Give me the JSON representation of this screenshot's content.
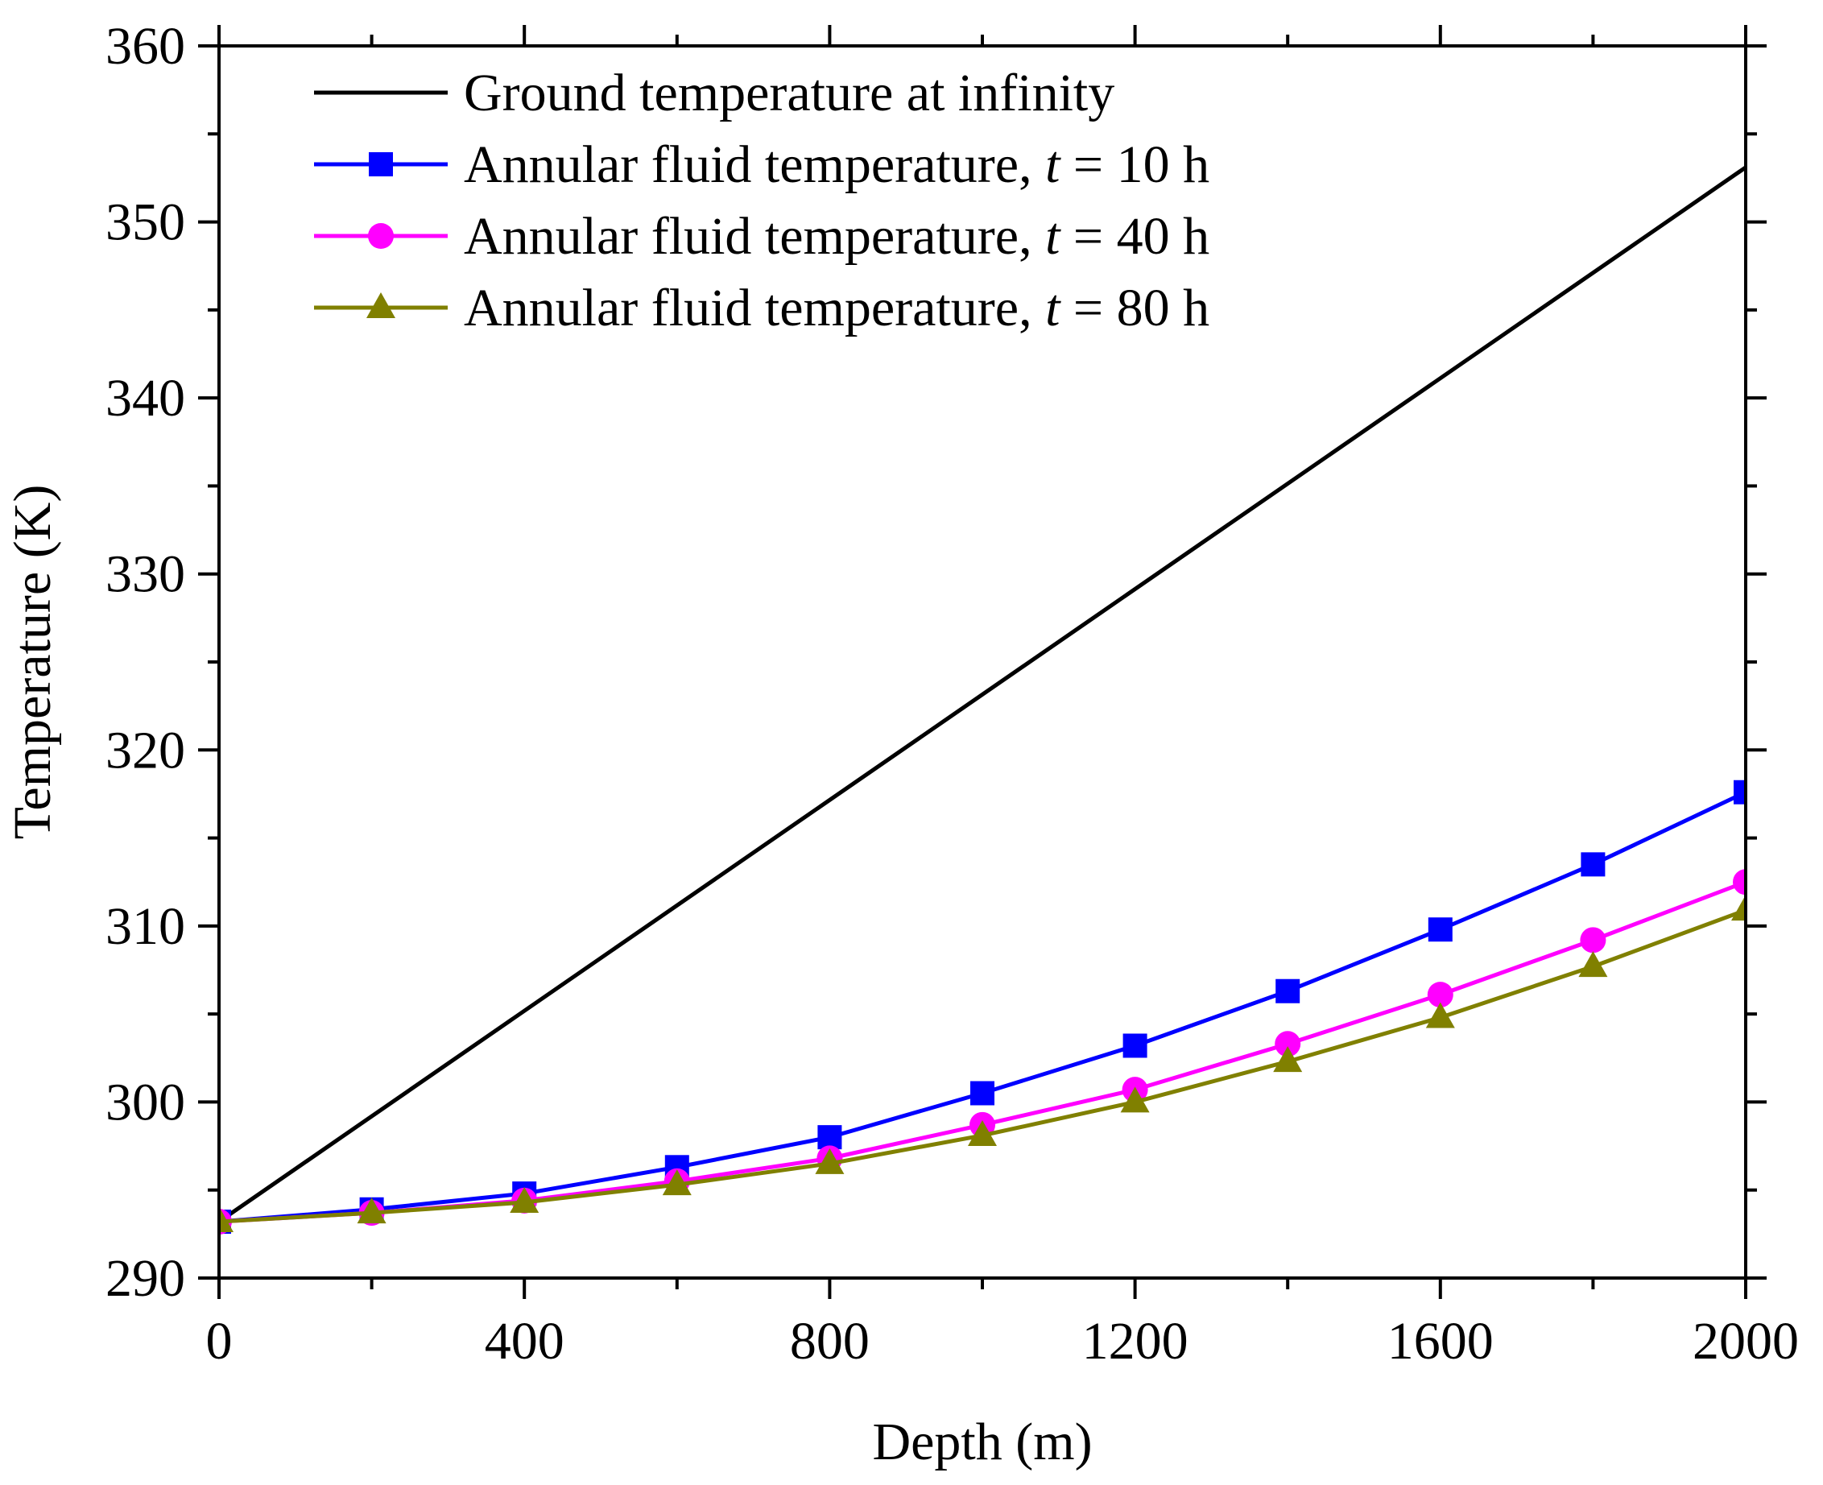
{
  "chart_data": {
    "type": "line",
    "title": "",
    "xlabel": "Depth (m)",
    "ylabel": "Temperature (K)",
    "xlim": [
      0,
      2000
    ],
    "ylim": [
      290,
      360
    ],
    "x_ticks": [
      0,
      400,
      800,
      1200,
      1600,
      2000
    ],
    "x_minor_ticks": [
      200,
      600,
      1000,
      1400,
      1800
    ],
    "y_ticks": [
      290,
      300,
      310,
      320,
      330,
      340,
      350,
      360
    ],
    "y_minor_ticks": [
      295,
      305,
      315,
      325,
      335,
      345,
      355
    ],
    "grid": false,
    "legend_position": "top-left",
    "series": [
      {
        "name": "Ground temperature at infinity",
        "legend_prefix": "Ground temperature at infinity",
        "legend_var": "",
        "legend_suffix": "",
        "color": "#000000",
        "marker": "none",
        "x": [
          0,
          2000
        ],
        "values": [
          293.2,
          353.1
        ]
      },
      {
        "name": "Annular fluid temperature, t = 10 h",
        "legend_prefix": "Annular fluid temperature, ",
        "legend_var": "t",
        "legend_suffix": " = 10 h",
        "color": "#0000ff",
        "marker": "square",
        "x": [
          0,
          200,
          400,
          600,
          800,
          1000,
          1200,
          1400,
          1600,
          1800,
          2000
        ],
        "values": [
          293.2,
          293.9,
          294.8,
          296.3,
          298.0,
          300.5,
          303.2,
          306.3,
          309.8,
          313.5,
          317.6
        ]
      },
      {
        "name": "Annular fluid temperature, t = 40 h",
        "legend_prefix": "Annular fluid temperature, ",
        "legend_var": "t",
        "legend_suffix": " = 40 h",
        "color": "#ff00ff",
        "marker": "circle",
        "x": [
          0,
          200,
          400,
          600,
          800,
          1000,
          1200,
          1400,
          1600,
          1800,
          2000
        ],
        "values": [
          293.2,
          293.7,
          294.4,
          295.5,
          296.8,
          298.7,
          300.7,
          303.3,
          306.1,
          309.2,
          312.5
        ]
      },
      {
        "name": "Annular fluid temperature, t = 80 h",
        "legend_prefix": "Annular fluid temperature, ",
        "legend_var": "t",
        "legend_suffix": " = 80 h",
        "color": "#808000",
        "marker": "triangle",
        "x": [
          0,
          200,
          400,
          600,
          800,
          1000,
          1200,
          1400,
          1600,
          1800,
          2000
        ],
        "values": [
          293.2,
          293.7,
          294.3,
          295.3,
          296.5,
          298.1,
          300.0,
          302.3,
          304.8,
          307.7,
          310.9
        ]
      }
    ]
  }
}
